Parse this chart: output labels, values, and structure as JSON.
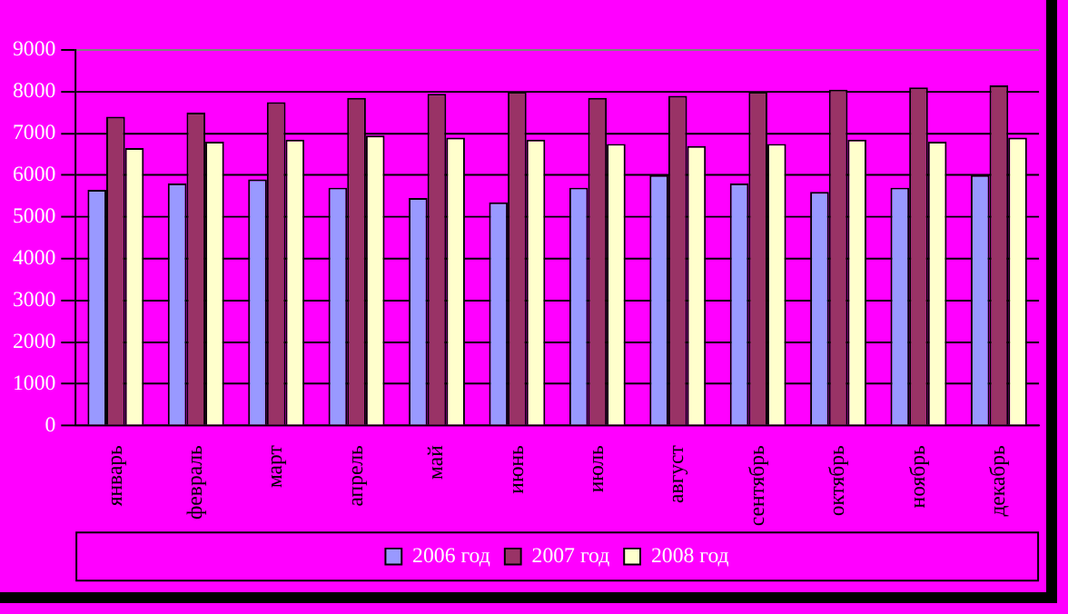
{
  "chart_data": {
    "type": "bar",
    "categories": [
      "январь",
      "февраль",
      "март",
      "апрель",
      "май",
      "июнь",
      "июль",
      "август",
      "сентябрь",
      "октябрь",
      "ноябрь",
      "декабрь"
    ],
    "series": [
      {
        "name": "2006 год",
        "color": "#9999ff",
        "values": [
          5650,
          5800,
          5900,
          5700,
          5450,
          5350,
          5700,
          6000,
          5800,
          5600,
          5700,
          6000
        ]
      },
      {
        "name": "2007 год",
        "color": "#993366",
        "values": [
          7400,
          7500,
          7750,
          7850,
          7950,
          8000,
          7850,
          7900,
          8000,
          8050,
          8100,
          8150
        ]
      },
      {
        "name": "2008 год",
        "color": "#ffffcc",
        "values": [
          6650,
          6800,
          6850,
          6950,
          6900,
          6850,
          6750,
          6700,
          6750,
          6850,
          6800,
          6900
        ]
      }
    ],
    "ylim": [
      0,
      9000
    ],
    "yticks": [
      0,
      1000,
      2000,
      3000,
      4000,
      5000,
      6000,
      7000,
      8000,
      9000
    ],
    "grid": "y",
    "legend": "bottom"
  }
}
